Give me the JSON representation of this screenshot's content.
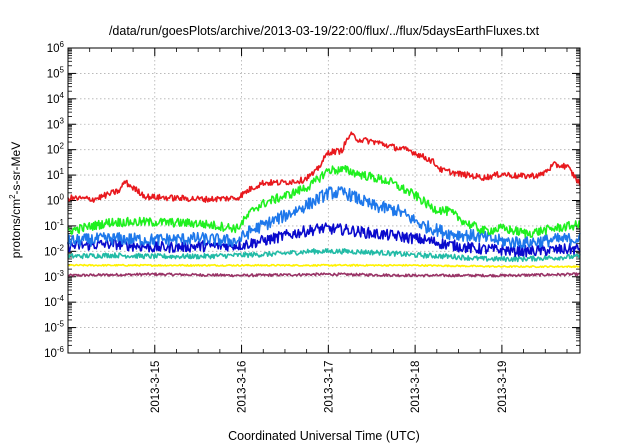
{
  "chart_data": {
    "type": "line",
    "title": "/data/run/goesPlots/archive/2013-03-19/22:00/flux/../flux/5daysEarthFluxes.txt",
    "xlabel": "Coordinated Universal Time (UTC)",
    "ylabel": {
      "base": "protons/cm",
      "sup": "2",
      "rest": "-s-sr-MeV"
    },
    "yscale": "log",
    "ylim_exp": [
      -6,
      6
    ],
    "xlim_days": [
      0,
      5.9
    ],
    "grid": true,
    "x_tick_labels": [
      {
        "day": 1,
        "label": "2013-3-15"
      },
      {
        "day": 2,
        "label": "2013-3-16"
      },
      {
        "day": 3,
        "label": "2013-3-17"
      },
      {
        "day": 4,
        "label": "2013-3-18"
      },
      {
        "day": 5,
        "label": "2013-3-19"
      }
    ],
    "series": [
      {
        "color": "#e8191e",
        "noise": 0.12,
        "points": [
          [
            0,
            0.1
          ],
          [
            0.3,
            0.05
          ],
          [
            0.6,
            0.4
          ],
          [
            0.65,
            0.75
          ],
          [
            0.75,
            0.5
          ],
          [
            0.9,
            0.15
          ],
          [
            1.2,
            0.1
          ],
          [
            1.6,
            0.05
          ],
          [
            1.95,
            0.1
          ],
          [
            2.1,
            0.45
          ],
          [
            2.25,
            0.7
          ],
          [
            2.45,
            0.7
          ],
          [
            2.7,
            0.8
          ],
          [
            2.85,
            1.1
          ],
          [
            3.0,
            1.9
          ],
          [
            3.15,
            1.95
          ],
          [
            3.25,
            2.6
          ],
          [
            3.35,
            2.4
          ],
          [
            3.55,
            2.3
          ],
          [
            3.75,
            2.1
          ],
          [
            3.95,
            1.95
          ],
          [
            4.2,
            1.55
          ],
          [
            4.3,
            1.2
          ],
          [
            4.5,
            1.05
          ],
          [
            4.8,
            0.9
          ],
          [
            5.0,
            1.05
          ],
          [
            5.2,
            0.95
          ],
          [
            5.45,
            1.0
          ],
          [
            5.6,
            1.4
          ],
          [
            5.75,
            1.35
          ],
          [
            5.9,
            0.65
          ]
        ]
      },
      {
        "color": "#1ff01f",
        "noise": 0.18,
        "points": [
          [
            0,
            -1.2
          ],
          [
            0.5,
            -0.85
          ],
          [
            1.0,
            -0.85
          ],
          [
            1.5,
            -0.9
          ],
          [
            1.95,
            -1.1
          ],
          [
            2.05,
            -0.7
          ],
          [
            2.15,
            -0.3
          ],
          [
            2.3,
            -0.05
          ],
          [
            2.6,
            0.3
          ],
          [
            2.8,
            0.6
          ],
          [
            3.0,
            1.2
          ],
          [
            3.2,
            1.2
          ],
          [
            3.4,
            1.0
          ],
          [
            3.7,
            0.75
          ],
          [
            4.0,
            0.2
          ],
          [
            4.2,
            -0.3
          ],
          [
            4.4,
            -0.45
          ],
          [
            4.6,
            -0.9
          ],
          [
            4.8,
            -1.2
          ],
          [
            5.0,
            -1.1
          ],
          [
            5.3,
            -1.3
          ],
          [
            5.6,
            -1.1
          ],
          [
            5.9,
            -0.95
          ]
        ]
      },
      {
        "color": "#1e78eb",
        "noise": 0.25,
        "points": [
          [
            0,
            -1.6
          ],
          [
            0.5,
            -1.5
          ],
          [
            1.0,
            -1.55
          ],
          [
            1.5,
            -1.5
          ],
          [
            1.95,
            -1.6
          ],
          [
            2.1,
            -1.2
          ],
          [
            2.3,
            -0.9
          ],
          [
            2.5,
            -0.6
          ],
          [
            2.8,
            -0.1
          ],
          [
            3.0,
            0.3
          ],
          [
            3.2,
            0.3
          ],
          [
            3.5,
            -0.2
          ],
          [
            3.8,
            -0.4
          ],
          [
            4.1,
            -1.0
          ],
          [
            4.4,
            -1.3
          ],
          [
            4.7,
            -1.4
          ],
          [
            5.0,
            -1.6
          ],
          [
            5.3,
            -1.65
          ],
          [
            5.6,
            -1.55
          ],
          [
            5.9,
            -1.5
          ]
        ]
      },
      {
        "color": "#0a0acd",
        "noise": 0.22,
        "points": [
          [
            0,
            -1.8
          ],
          [
            0.5,
            -1.7
          ],
          [
            1.0,
            -1.85
          ],
          [
            1.5,
            -1.8
          ],
          [
            2.0,
            -1.75
          ],
          [
            2.3,
            -1.55
          ],
          [
            2.6,
            -1.3
          ],
          [
            2.9,
            -1.1
          ],
          [
            3.2,
            -1.15
          ],
          [
            3.5,
            -1.3
          ],
          [
            3.8,
            -1.4
          ],
          [
            4.1,
            -1.55
          ],
          [
            4.4,
            -1.75
          ],
          [
            4.7,
            -1.9
          ],
          [
            5.0,
            -1.95
          ],
          [
            5.3,
            -2.0
          ],
          [
            5.6,
            -1.95
          ],
          [
            5.9,
            -1.9
          ]
        ]
      },
      {
        "color": "#22bba6",
        "noise": 0.1,
        "points": [
          [
            0,
            -2.2
          ],
          [
            0.5,
            -2.15
          ],
          [
            1.0,
            -2.2
          ],
          [
            1.5,
            -2.2
          ],
          [
            2.0,
            -2.15
          ],
          [
            2.4,
            -2.1
          ],
          [
            2.8,
            -2.0
          ],
          [
            3.2,
            -2.0
          ],
          [
            3.6,
            -2.05
          ],
          [
            4.0,
            -2.15
          ],
          [
            4.4,
            -2.2
          ],
          [
            4.8,
            -2.3
          ],
          [
            5.2,
            -2.3
          ],
          [
            5.6,
            -2.25
          ],
          [
            5.9,
            -2.2
          ]
        ]
      },
      {
        "color": "#fff200",
        "noise": 0.03,
        "points": [
          [
            0,
            -2.55
          ],
          [
            1.0,
            -2.55
          ],
          [
            2.0,
            -2.55
          ],
          [
            3.0,
            -2.55
          ],
          [
            4.0,
            -2.55
          ],
          [
            5.0,
            -2.6
          ],
          [
            5.9,
            -2.6
          ]
        ]
      },
      {
        "color": "#993366",
        "noise": 0.05,
        "points": [
          [
            0,
            -2.95
          ],
          [
            1.0,
            -2.9
          ],
          [
            2.0,
            -2.95
          ],
          [
            3.0,
            -2.9
          ],
          [
            4.0,
            -2.95
          ],
          [
            5.0,
            -2.95
          ],
          [
            5.9,
            -2.9
          ]
        ]
      }
    ]
  }
}
